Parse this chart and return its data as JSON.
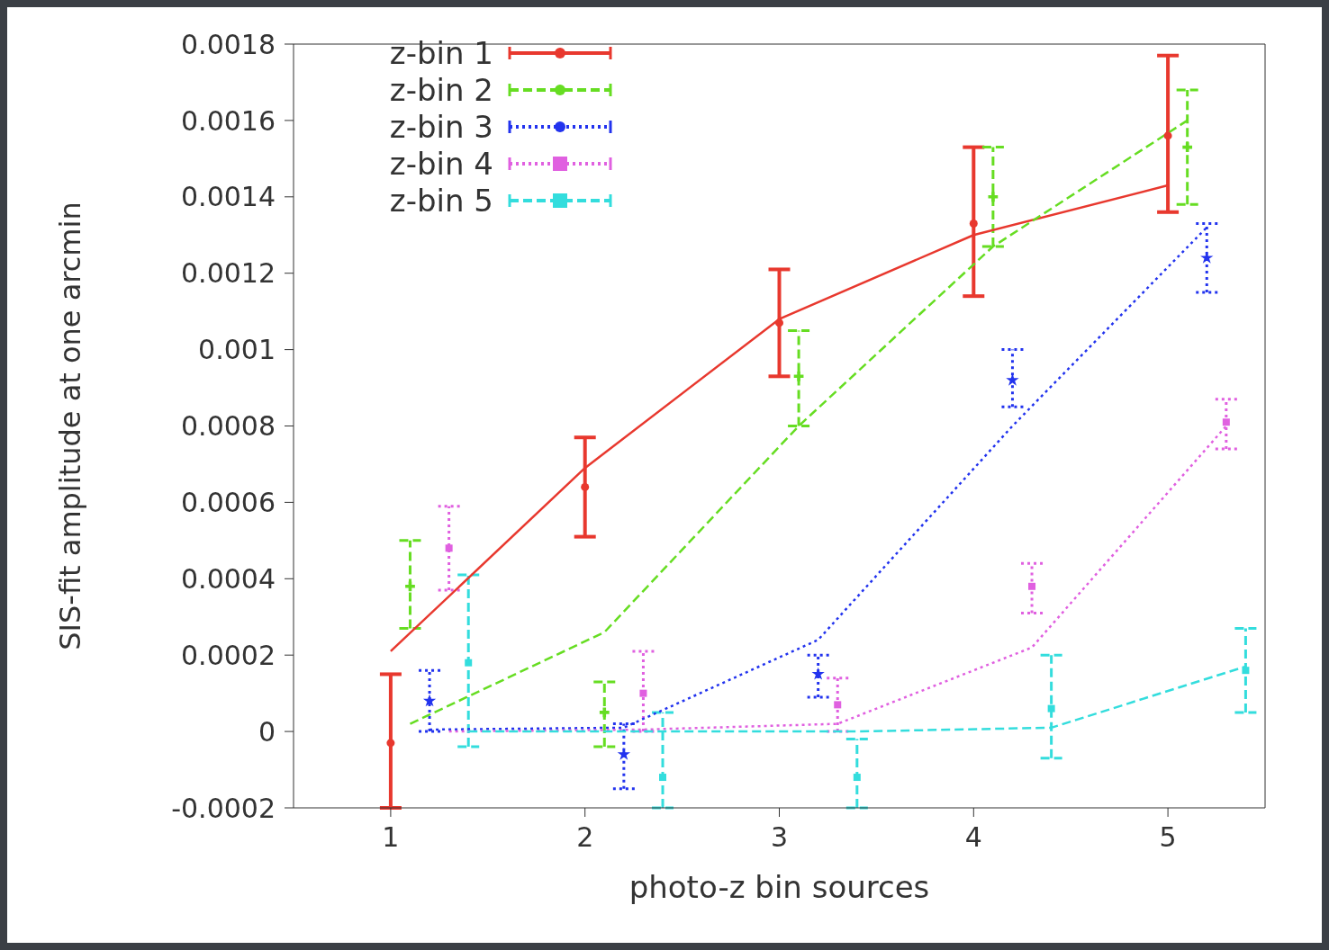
{
  "chart_data": {
    "type": "scatter",
    "xlabel": "photo-z bin sources",
    "ylabel": "SIS-fit amplitude at one arcmin",
    "xlim": [
      0.5,
      5.5
    ],
    "xticks": [
      1,
      2,
      3,
      4,
      5
    ],
    "ylim": [
      -0.0002,
      0.0018
    ],
    "yticks": [
      0.0018,
      0.0016,
      0.0014,
      0.0012,
      0.001,
      0.0008,
      0.0006,
      0.0004,
      0.0002,
      0,
      -0.0002
    ],
    "grid": false,
    "legend": "top left",
    "series": [
      {
        "name": "z-bin 1",
        "color": "#e8382e",
        "marker": "circle",
        "line_style": "solid",
        "x": [
          1,
          2,
          3,
          4,
          5
        ],
        "values": [
          -3e-05,
          0.00064,
          0.00107,
          0.00133,
          0.00156
        ],
        "errors": [
          [
            -0.0002,
            0.00015
          ],
          [
            0.00051,
            0.00077
          ],
          [
            0.00093,
            0.00121
          ],
          [
            0.00114,
            0.00153
          ],
          [
            0.00136,
            0.00177
          ]
        ]
      },
      {
        "name": "z-bin 2",
        "color": "#66dd22",
        "marker": "cross",
        "line_style": "dashed",
        "x": [
          1.1,
          2.1,
          3.1,
          4.1,
          5.1
        ],
        "values": [
          0.00038,
          5e-05,
          0.00093,
          0.0014,
          0.00153
        ],
        "errors": [
          [
            0.00027,
            0.0005
          ],
          [
            -4e-05,
            0.00013
          ],
          [
            0.0008,
            0.00105
          ],
          [
            0.00127,
            0.00153
          ],
          [
            0.00138,
            0.00168
          ]
        ]
      },
      {
        "name": "z-bin 3",
        "color": "#2233ee",
        "marker": "star",
        "line_style": "dotted",
        "x": [
          1.2,
          2.2,
          3.2,
          4.2,
          5.2
        ],
        "values": [
          8e-05,
          -6e-05,
          0.00015,
          0.00092,
          0.00124
        ],
        "errors": [
          [
            0,
            0.00016
          ],
          [
            -0.00015,
            2e-05
          ],
          [
            9e-05,
            0.0002
          ],
          [
            0.00085,
            0.001
          ],
          [
            0.00115,
            0.00133
          ]
        ]
      },
      {
        "name": "z-bin 4",
        "color": "#e060e0",
        "marker": "square",
        "line_style": "dotted",
        "x": [
          1.3,
          2.3,
          3.3,
          4.3,
          5.3
        ],
        "values": [
          0.00048,
          0.0001,
          7e-05,
          0.00038,
          0.00081
        ],
        "errors": [
          [
            0.00037,
            0.00059
          ],
          [
            0,
            0.00021
          ],
          [
            0,
            0.00014
          ],
          [
            0.00031,
            0.00044
          ],
          [
            0.00074,
            0.00087
          ]
        ]
      },
      {
        "name": "z-bin 5",
        "color": "#33dddd",
        "marker": "square",
        "line_style": "dashed",
        "x": [
          1.4,
          2.4,
          3.4,
          4.4,
          5.4
        ],
        "values": [
          0.00018,
          -0.00012,
          -0.00012,
          6e-05,
          0.00016
        ],
        "errors": [
          [
            -4e-05,
            0.00041
          ],
          [
            -0.0002,
            5e-05
          ],
          [
            -0.0002,
            -2e-05
          ],
          [
            -7e-05,
            0.0002
          ],
          [
            5e-05,
            0.00027
          ]
        ]
      },
      {
        "type": "line",
        "color": "#e8382e",
        "line_style": "solid",
        "x": [
          1,
          2,
          3,
          4,
          5
        ],
        "values": [
          0.00021,
          0.00069,
          0.00108,
          0.0013,
          0.00143
        ]
      },
      {
        "type": "line",
        "color": "#66dd22",
        "line_style": "dashed",
        "x": [
          1.1,
          2.1,
          3.1,
          4.1,
          5.1
        ],
        "values": [
          2e-05,
          0.00026,
          0.0008,
          0.00127,
          0.0016
        ]
      },
      {
        "type": "line",
        "color": "#2233ee",
        "line_style": "dotted",
        "x": [
          1.2,
          2.2,
          3.2,
          4.2,
          5.2
        ],
        "values": [
          5e-06,
          1e-05,
          0.00024,
          0.0008,
          0.00132
        ]
      },
      {
        "type": "line",
        "color": "#e060e0",
        "line_style": "dotted",
        "x": [
          1.3,
          2.3,
          3.3,
          4.3,
          5.3
        ],
        "values": [
          0,
          5e-06,
          2e-05,
          0.00022,
          0.0008
        ]
      },
      {
        "type": "line",
        "color": "#33dddd",
        "line_style": "dashed",
        "x": [
          1.4,
          2.4,
          3.4,
          4.4,
          5.4
        ],
        "values": [
          0,
          0,
          0,
          1e-05,
          0.00017
        ]
      }
    ]
  }
}
